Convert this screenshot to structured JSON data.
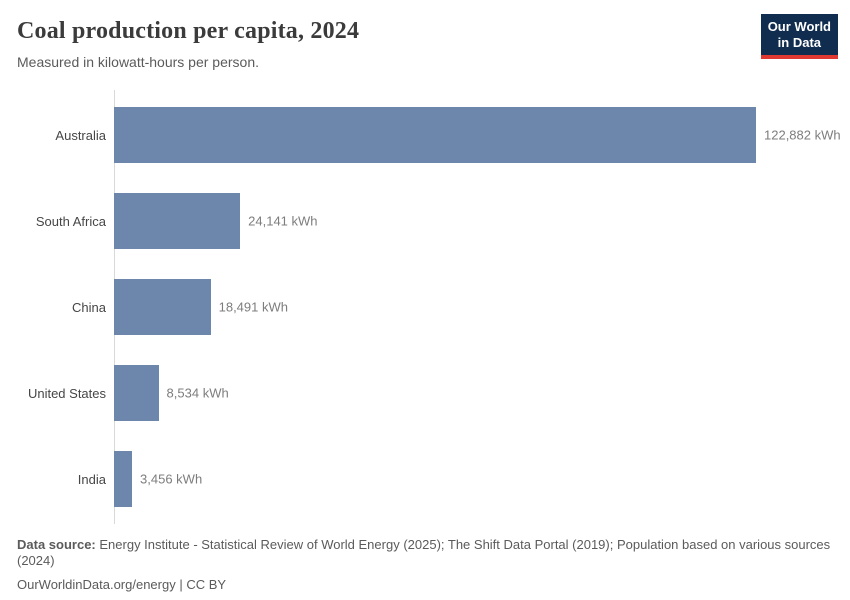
{
  "header": {
    "title": "Coal production per capita, 2024",
    "subtitle": "Measured in kilowatt-hours per person.",
    "logo": {
      "line1": "Our World",
      "line2": "in Data",
      "background": "#102d50",
      "accent": "#e03931"
    }
  },
  "chart_data": {
    "type": "bar",
    "orientation": "horizontal",
    "title": "Coal production per capita, 2024",
    "subtitle": "Measured in kilowatt-hours per person.",
    "unit": "kWh",
    "categories": [
      "Australia",
      "South Africa",
      "China",
      "United States",
      "India"
    ],
    "values": [
      122882,
      24141,
      18491,
      8534,
      3456
    ],
    "value_labels": [
      "122,882 kWh",
      "24,141 kWh",
      "18,491 kWh",
      "8,534 kWh",
      "3,456 kWh"
    ],
    "xlim": [
      0,
      122882
    ],
    "grid": false,
    "legend": "none",
    "bar_color": "#6d87ac",
    "axis_color": "#d9d9d9"
  },
  "footer": {
    "datasource_label": "Data source:",
    "datasource_text": "Energy Institute - Statistical Review of World Energy (2025); The Shift Data Portal (2019); Population based on various sources (2024)",
    "license_line": "OurWorldinData.org/energy | CC BY"
  }
}
